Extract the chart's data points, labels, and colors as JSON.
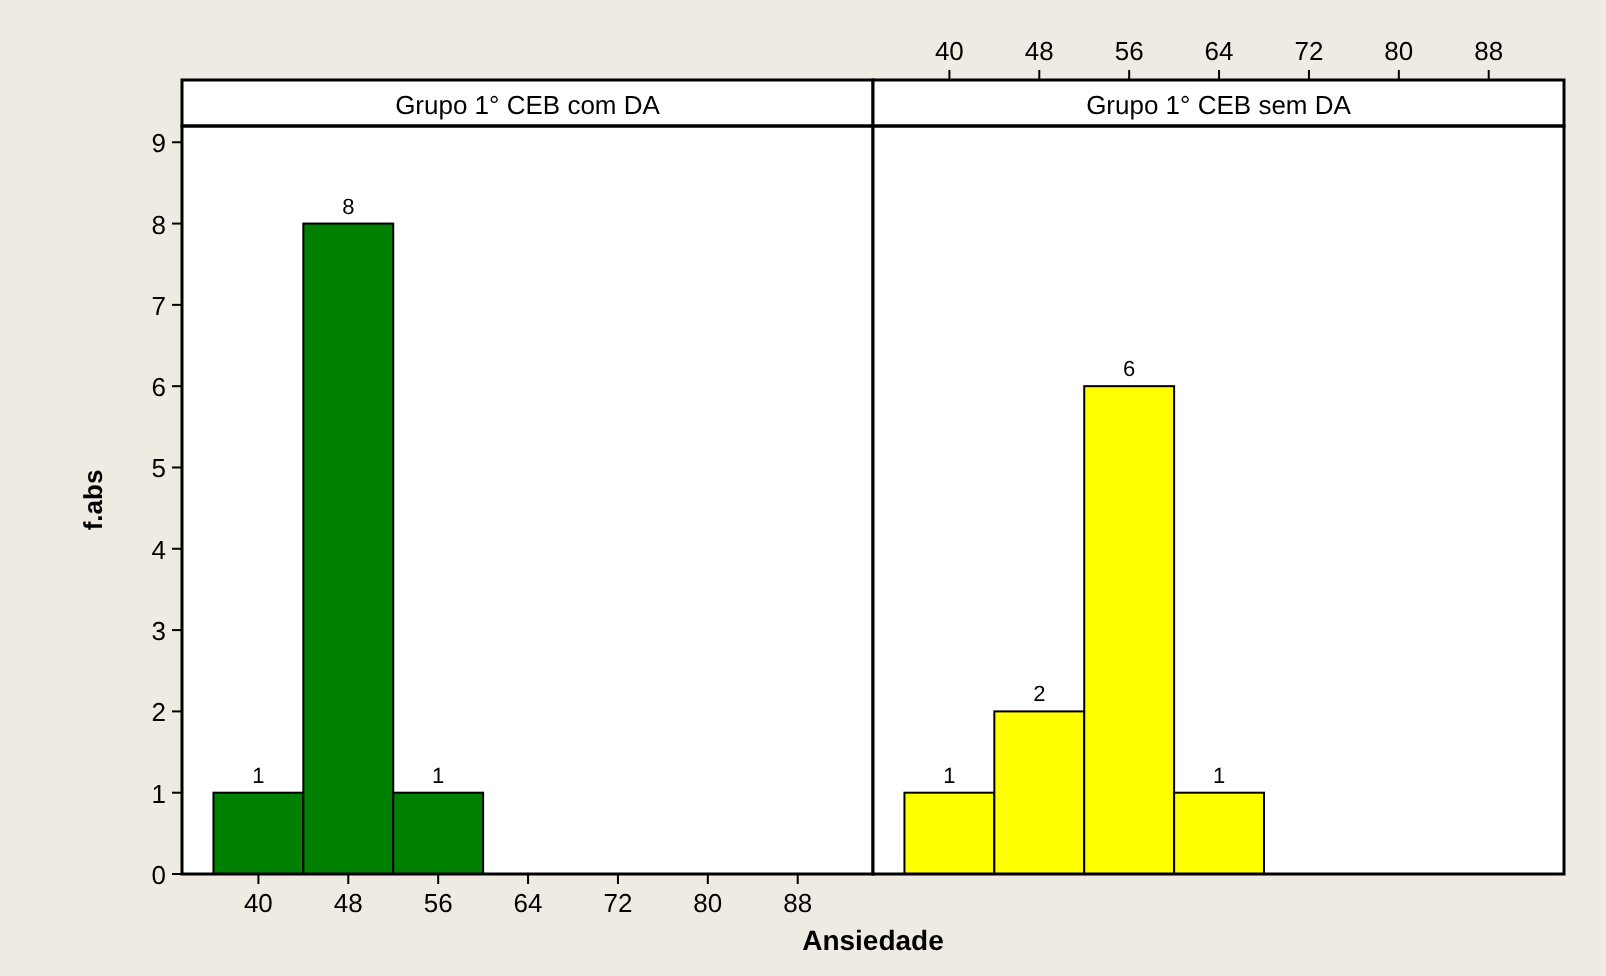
{
  "chart_data": [
    {
      "type": "histogram",
      "title": "Grupo 1° CEB com DA",
      "xlabel": "Ansiedade",
      "ylabel": "f.abs",
      "bins": [
        36,
        44,
        52,
        60
      ],
      "values": [
        1,
        8,
        1
      ],
      "color": "#008000",
      "data_labels": true,
      "xlim": [
        33.2,
        94.7
      ],
      "xticks": [
        40,
        48,
        56,
        64,
        72,
        80,
        88
      ],
      "ylim": [
        0,
        9.2
      ],
      "yticks": [
        0,
        1,
        2,
        3,
        4,
        5,
        6,
        7,
        8,
        9
      ]
    },
    {
      "type": "histogram",
      "title": "Grupo 1° CEB sem DA",
      "bins": [
        36,
        44,
        52,
        60,
        68
      ],
      "values": [
        1,
        2,
        6,
        1
      ],
      "color": "#ffff00",
      "data_labels": true,
      "xlim": [
        33.2,
        94.7
      ],
      "x2lim": [
        33.2,
        94.7
      ],
      "x2ticks": [
        40,
        48,
        56,
        64,
        72,
        80,
        88
      ],
      "ylim": [
        0,
        9.2
      ],
      "tick_labels": "x"
    }
  ]
}
